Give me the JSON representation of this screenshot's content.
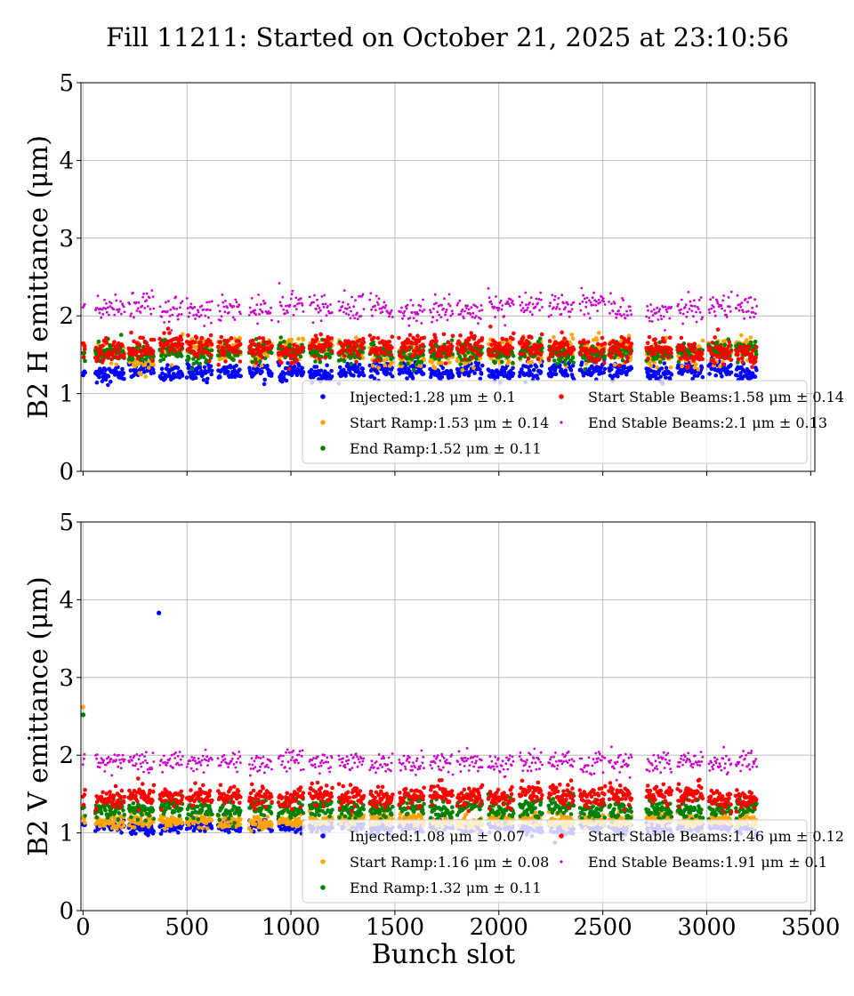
{
  "title": "Fill 11211: Started on October 21, 2025 at 23:10:56",
  "colors": {
    "injected": "#0000ff",
    "start_ramp": "#ffa500",
    "end_ramp": "#008000",
    "start_stable": "#ff0000",
    "end_stable": "#cc00cc"
  },
  "chart_data": [
    {
      "type": "scatter",
      "ylabel": "B2 H emittance (μm)",
      "xlabel": "",
      "xlim": [
        -10,
        3520
      ],
      "ylim": [
        0,
        5
      ],
      "x_ticks": [
        0,
        500,
        1000,
        1500,
        2000,
        2500,
        3000,
        3500
      ],
      "y_ticks": [
        0,
        1,
        2,
        3,
        4,
        5
      ],
      "show_x_tick_labels": false,
      "grid": true,
      "legend_position": "lower-right",
      "series": [
        {
          "key": "injected",
          "label": "Injected:1.28 μm ± 0.1",
          "mean": 1.28,
          "std": 0.1
        },
        {
          "key": "start_ramp",
          "label": "Start Ramp:1.53 μm ± 0.14",
          "mean": 1.53,
          "std": 0.14
        },
        {
          "key": "end_ramp",
          "label": "End Ramp:1.52 μm ± 0.11",
          "mean": 1.52,
          "std": 0.11
        },
        {
          "key": "start_stable",
          "label": "Start Stable Beams:1.58 μm ± 0.14",
          "mean": 1.58,
          "std": 0.14
        },
        {
          "key": "end_stable",
          "label": "End Stable Beams:2.1 μm ± 0.13",
          "mean": 2.1,
          "std": 0.13
        }
      ],
      "bunch_trains": [
        [
          0,
          10
        ],
        [
          60,
          200
        ],
        [
          220,
          340
        ],
        [
          370,
          480
        ],
        [
          500,
          620
        ],
        [
          650,
          760
        ],
        [
          800,
          910
        ],
        [
          940,
          1060
        ],
        [
          1090,
          1200
        ],
        [
          1230,
          1350
        ],
        [
          1380,
          1490
        ],
        [
          1520,
          1640
        ],
        [
          1670,
          1780
        ],
        [
          1800,
          1920
        ],
        [
          1950,
          2070
        ],
        [
          2100,
          2210
        ],
        [
          2240,
          2360
        ],
        [
          2390,
          2510
        ],
        [
          2530,
          2640
        ],
        [
          2710,
          2830
        ],
        [
          2860,
          2980
        ],
        [
          3010,
          3120
        ],
        [
          3140,
          3240
        ]
      ],
      "outliers": []
    },
    {
      "type": "scatter",
      "ylabel": "B2 V emittance (μm)",
      "xlabel": "Bunch slot",
      "xlim": [
        -10,
        3520
      ],
      "ylim": [
        0,
        5
      ],
      "x_ticks": [
        0,
        500,
        1000,
        1500,
        2000,
        2500,
        3000,
        3500
      ],
      "y_ticks": [
        0,
        1,
        2,
        3,
        4,
        5
      ],
      "show_x_tick_labels": true,
      "grid": true,
      "legend_position": "lower-right",
      "series": [
        {
          "key": "injected",
          "label": "Injected:1.08 μm ± 0.07",
          "mean": 1.08,
          "std": 0.07
        },
        {
          "key": "start_ramp",
          "label": "Start Ramp:1.16 μm ± 0.08",
          "mean": 1.16,
          "std": 0.08
        },
        {
          "key": "end_ramp",
          "label": "End Ramp:1.32 μm ± 0.11",
          "mean": 1.32,
          "std": 0.11
        },
        {
          "key": "start_stable",
          "label": "Start Stable Beams:1.46 μm ± 0.12",
          "mean": 1.46,
          "std": 0.12
        },
        {
          "key": "end_stable",
          "label": "End Stable Beams:1.91 μm ± 0.1",
          "mean": 1.91,
          "std": 0.1
        }
      ],
      "bunch_trains": [
        [
          0,
          10
        ],
        [
          60,
          200
        ],
        [
          220,
          340
        ],
        [
          370,
          480
        ],
        [
          500,
          620
        ],
        [
          650,
          760
        ],
        [
          800,
          910
        ],
        [
          940,
          1060
        ],
        [
          1090,
          1200
        ],
        [
          1230,
          1350
        ],
        [
          1380,
          1490
        ],
        [
          1520,
          1640
        ],
        [
          1670,
          1780
        ],
        [
          1800,
          1920
        ],
        [
          1950,
          2070
        ],
        [
          2100,
          2210
        ],
        [
          2240,
          2360
        ],
        [
          2390,
          2510
        ],
        [
          2530,
          2640
        ],
        [
          2710,
          2830
        ],
        [
          2860,
          2980
        ],
        [
          3010,
          3120
        ],
        [
          3140,
          3240
        ]
      ],
      "outliers": [
        {
          "key": "injected",
          "x": 365,
          "y": 3.83
        },
        {
          "key": "start_ramp",
          "x": 0,
          "y": 2.62
        },
        {
          "key": "end_ramp",
          "x": 1,
          "y": 2.52
        }
      ]
    }
  ]
}
